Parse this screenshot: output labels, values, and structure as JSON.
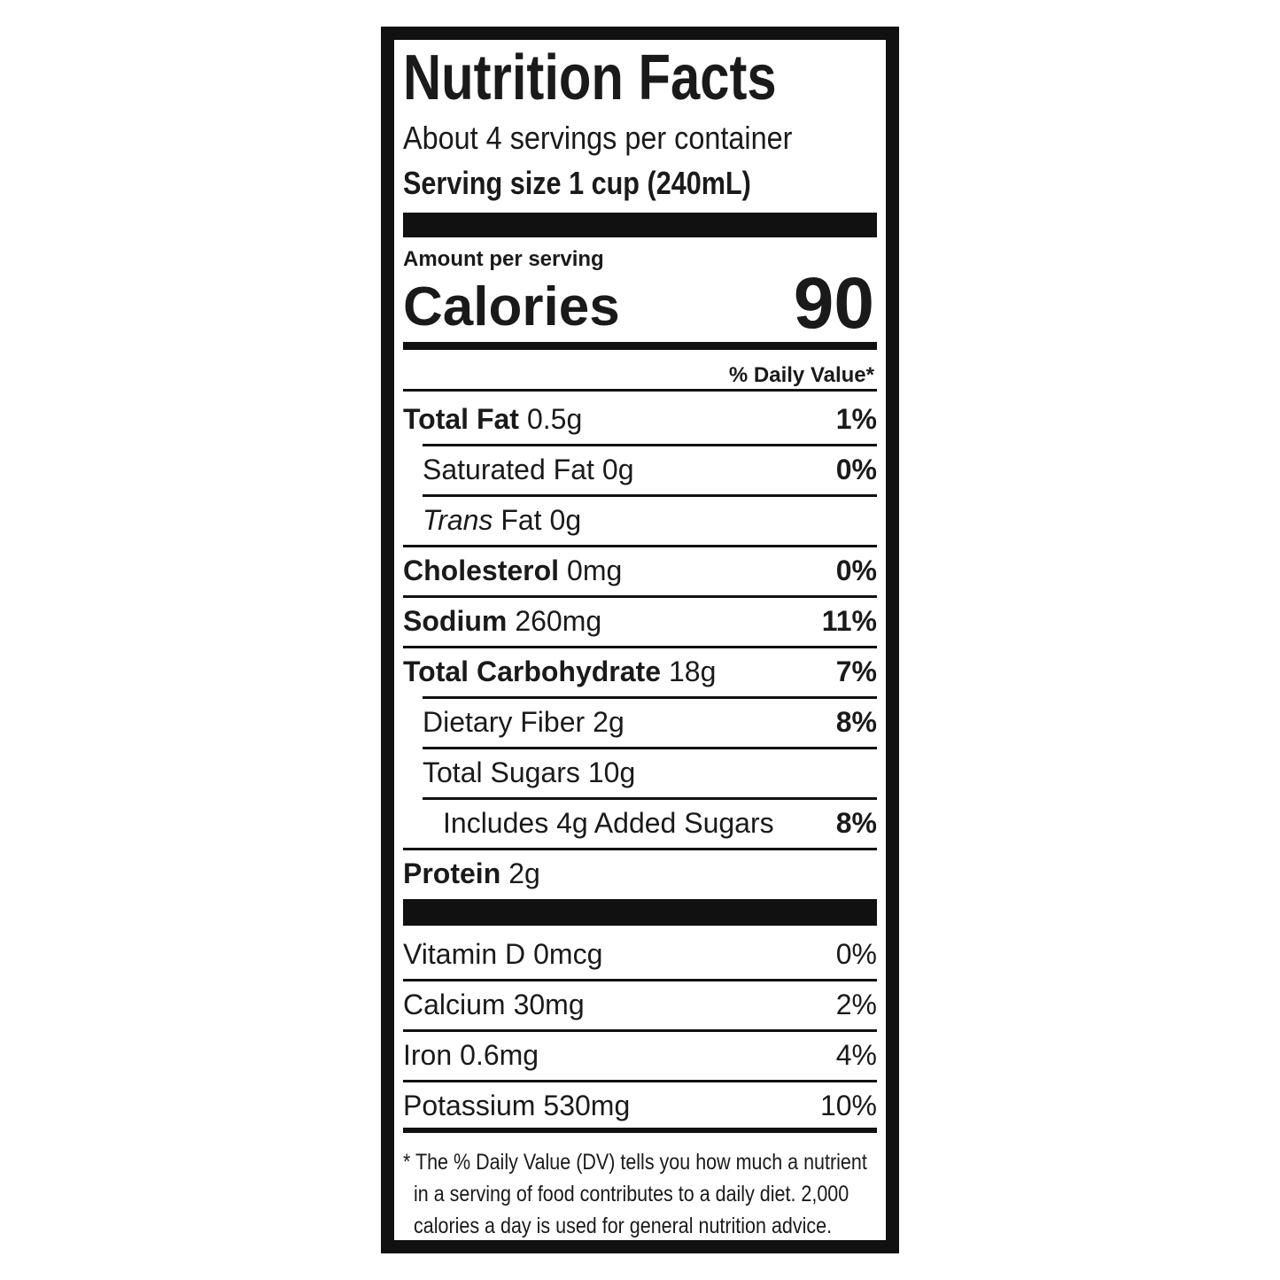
{
  "header": {
    "title": "Nutrition Facts",
    "servings": "About 4 servings per container",
    "serving_size": "Serving size 1 cup (240mL)"
  },
  "calories": {
    "caption": "Amount per serving",
    "label": "Calories",
    "value": "90"
  },
  "dv_header": "% Daily Value*",
  "nutrients": [
    {
      "label": "Total Fat",
      "amount": "0.5g",
      "dv": "1%",
      "bold": true,
      "indent": 0
    },
    {
      "label": "Saturated Fat",
      "amount": "0g",
      "dv": "0%",
      "bold": false,
      "indent": 1
    },
    {
      "label_italic": "Trans",
      "label": "Fat",
      "amount": "0g",
      "bold": false,
      "indent": 1
    },
    {
      "label": "Cholesterol",
      "amount": "0mg",
      "dv": "0%",
      "bold": true,
      "indent": 0
    },
    {
      "label": "Sodium",
      "amount": "260mg",
      "dv": "11%",
      "bold": true,
      "indent": 0
    },
    {
      "label": "Total Carbohydrate",
      "amount": "18g",
      "dv": "7%",
      "bold": true,
      "indent": 0
    },
    {
      "label": "Dietary Fiber",
      "amount": "2g",
      "dv": "8%",
      "bold": false,
      "indent": 1
    },
    {
      "label": "Total Sugars",
      "amount": "10g",
      "bold": false,
      "indent": 1
    },
    {
      "label": "Includes 4g Added Sugars",
      "dv": "8%",
      "bold": false,
      "indent": 2
    },
    {
      "label": "Protein",
      "amount": "2g",
      "bold": true,
      "indent": 0
    }
  ],
  "vitamins": [
    {
      "label": "Vitamin D",
      "amount": "0mcg",
      "dv": "0%"
    },
    {
      "label": "Calcium",
      "amount": "30mg",
      "dv": "2%"
    },
    {
      "label": "Iron",
      "amount": "0.6mg",
      "dv": "4%"
    },
    {
      "label": "Potassium",
      "amount": "530mg",
      "dv": "10%"
    }
  ],
  "footnote": {
    "lines": [
      "* The % Daily Value (DV) tells you how much a nutrient",
      "in a serving of food contributes to a daily diet. 2,000",
      "calories a day is used for general nutrition advice."
    ]
  }
}
